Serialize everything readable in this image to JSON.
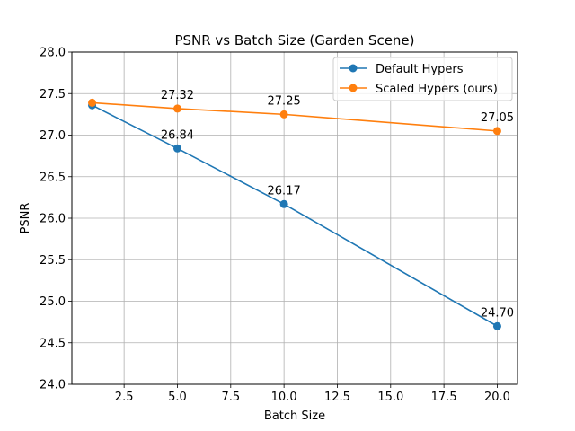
{
  "chart_data": {
    "type": "line",
    "title": "PSNR vs Batch Size (Garden Scene)",
    "xlabel": "Batch Size",
    "ylabel": "PSNR",
    "x": [
      1,
      5,
      10,
      20
    ],
    "xlim": [
      0.05,
      20.95
    ],
    "ylim": [
      24.0,
      28.0
    ],
    "xticks": [
      "2.5",
      "5.0",
      "7.5",
      "10.0",
      "12.5",
      "15.0",
      "17.5",
      "20.0"
    ],
    "yticks": [
      "24.0",
      "24.5",
      "25.0",
      "25.5",
      "26.0",
      "26.5",
      "27.0",
      "27.5",
      "28.0"
    ],
    "grid": true,
    "legend_position": "top-right",
    "series": [
      {
        "name": "Default Hypers",
        "color": "#1f77b4",
        "values": [
          27.36,
          26.84,
          26.17,
          24.7
        ],
        "labels": [
          "",
          "26.84",
          "26.17",
          "24.70"
        ]
      },
      {
        "name": "Scaled Hypers (ours)",
        "color": "#ff7f0e",
        "values": [
          27.39,
          27.32,
          27.25,
          27.05
        ],
        "labels": [
          "",
          "27.32",
          "27.25",
          "27.05"
        ]
      }
    ]
  }
}
